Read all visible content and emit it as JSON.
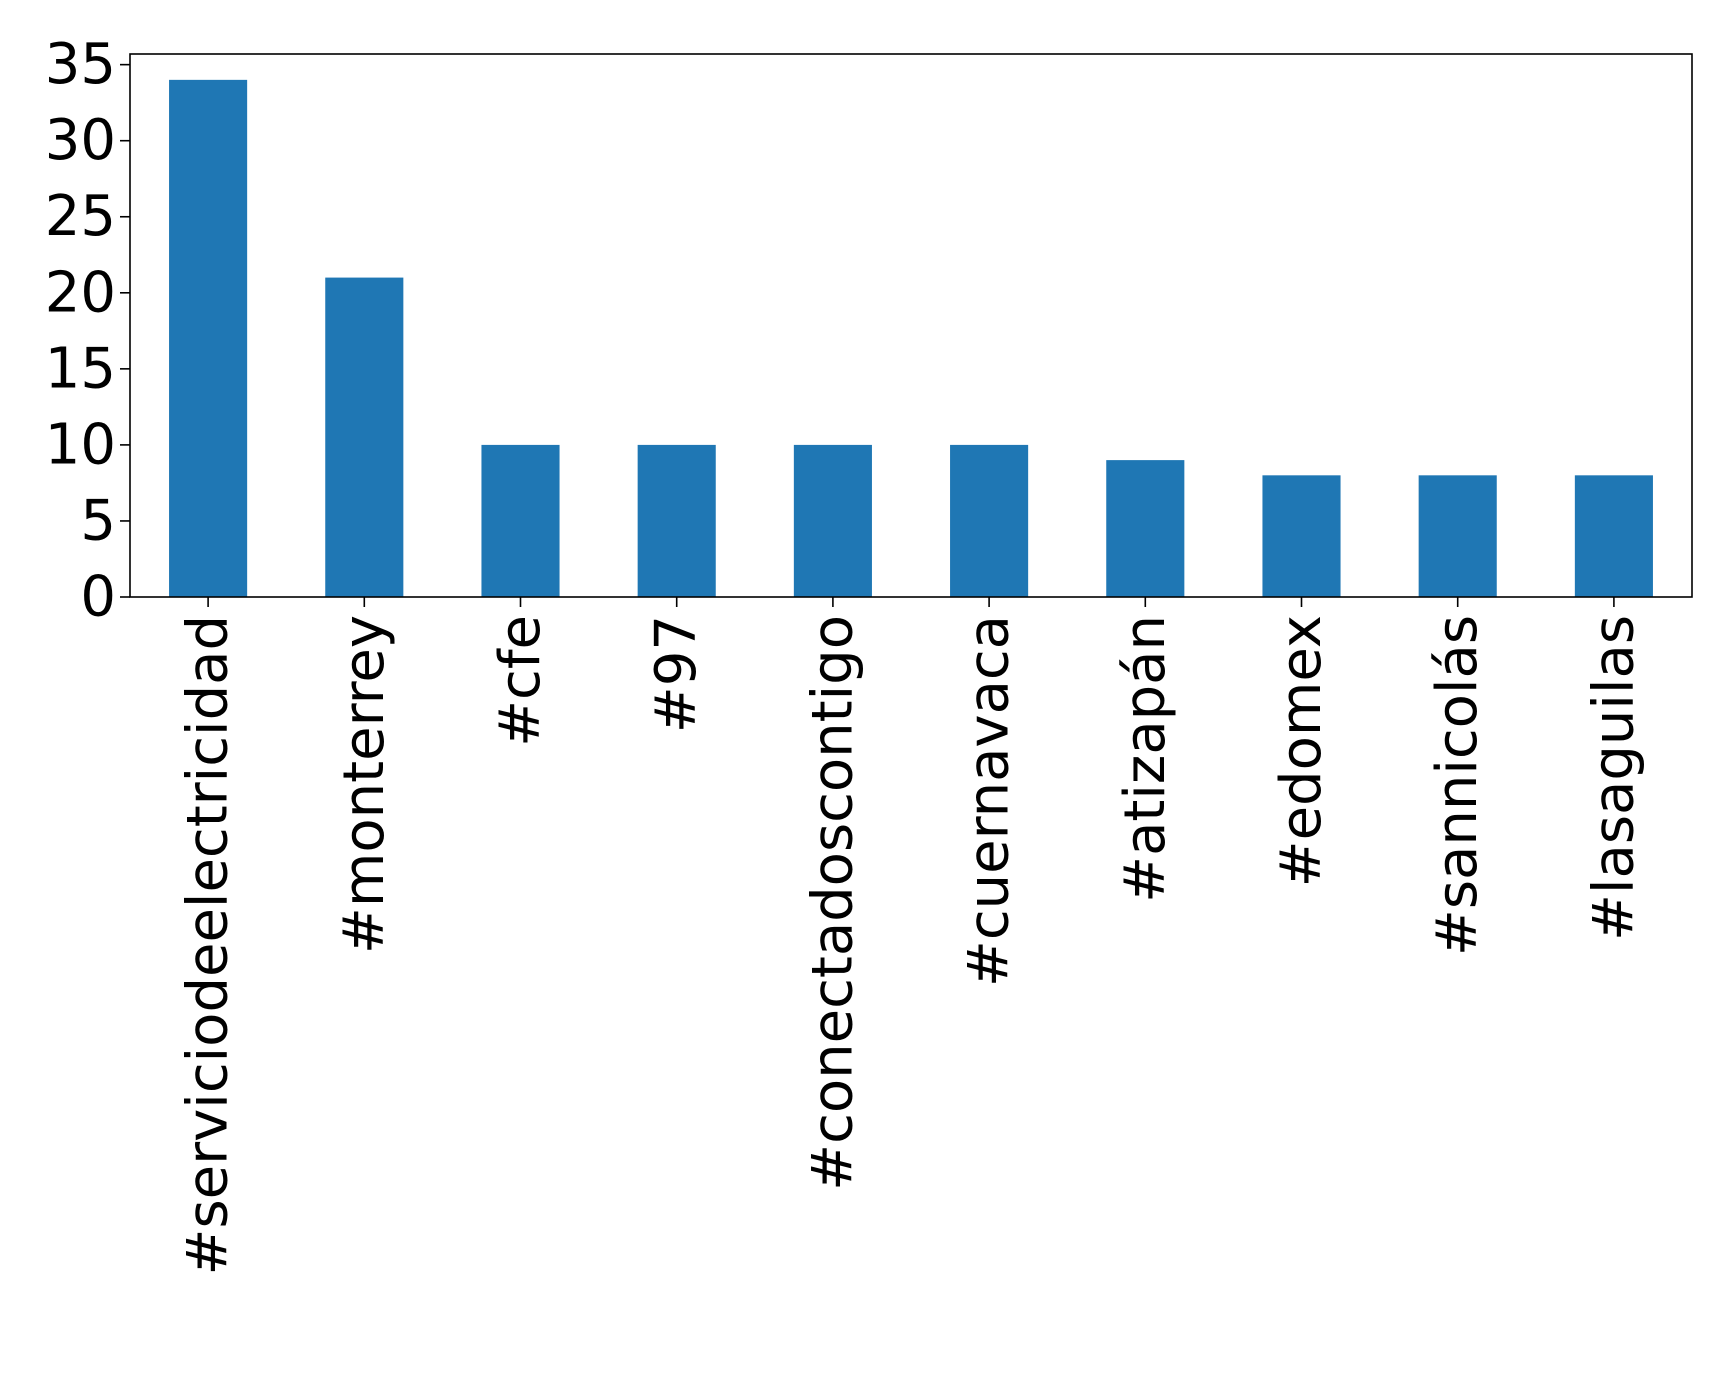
{
  "chart_data": {
    "type": "bar",
    "title": "",
    "xlabel": "",
    "ylabel": "",
    "categories": [
      "#serviciodeelectricidad",
      "#monterrey",
      "#cfe",
      "#97",
      "#conectadoscontigo",
      "#cuernavaca",
      "#atizapán",
      "#edomex",
      "#sannicolás",
      "#lasaguilas"
    ],
    "values": [
      34,
      21,
      10,
      10,
      10,
      10,
      9,
      8,
      8,
      8
    ],
    "ylim": [
      0,
      35.7
    ],
    "yticks": [
      "0",
      "5",
      "10",
      "15",
      "20",
      "25",
      "30",
      "35"
    ],
    "grid": false,
    "legend": "none",
    "bar_color": "#1f77b4"
  }
}
